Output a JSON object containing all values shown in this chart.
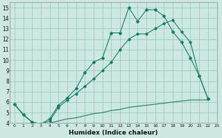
{
  "xlabel": "Humidex (Indice chaleur)",
  "bg_color": "#cce8e0",
  "grid_color": "#99ccbb",
  "line_color": "#1a7a6a",
  "xlim": [
    -0.5,
    23
  ],
  "ylim": [
    4,
    15.5
  ],
  "xticks": [
    0,
    1,
    2,
    3,
    4,
    5,
    6,
    7,
    8,
    9,
    10,
    11,
    12,
    13,
    14,
    15,
    16,
    17,
    18,
    19,
    20,
    21,
    22,
    23
  ],
  "yticks": [
    4,
    5,
    6,
    7,
    8,
    9,
    10,
    11,
    12,
    13,
    14,
    15
  ],
  "series1_x": [
    0,
    1,
    2,
    3,
    4,
    5,
    6,
    7,
    8,
    9,
    10,
    11,
    12,
    13,
    14,
    15,
    16,
    17,
    18,
    19,
    20,
    21,
    22
  ],
  "series1_y": [
    5.8,
    4.8,
    4.1,
    3.9,
    4.4,
    5.7,
    6.4,
    7.3,
    8.8,
    9.8,
    10.2,
    12.6,
    12.6,
    15.0,
    13.7,
    14.8,
    14.8,
    14.2,
    12.7,
    11.7,
    10.2,
    8.5,
    6.3
  ],
  "series2_x": [
    0,
    1,
    2,
    3,
    4,
    5,
    6,
    7,
    8,
    9,
    10,
    11,
    12,
    13,
    14,
    15,
    16,
    17,
    18,
    19,
    20,
    21,
    22
  ],
  "series2_y": [
    5.8,
    4.8,
    4.1,
    3.9,
    4.2,
    5.5,
    6.2,
    6.8,
    7.5,
    8.2,
    9.0,
    9.8,
    11.0,
    12.0,
    12.5,
    12.5,
    13.0,
    13.5,
    13.8,
    12.7,
    11.7,
    8.5,
    6.3
  ],
  "series3_x": [
    0,
    1,
    2,
    3,
    4,
    5,
    6,
    7,
    8,
    9,
    10,
    11,
    12,
    13,
    14,
    15,
    16,
    17,
    18,
    19,
    20,
    21,
    22
  ],
  "series3_y": [
    5.8,
    4.8,
    4.1,
    3.9,
    4.0,
    4.2,
    4.4,
    4.5,
    4.7,
    4.9,
    5.0,
    5.2,
    5.3,
    5.5,
    5.6,
    5.7,
    5.8,
    5.9,
    6.0,
    6.1,
    6.2,
    6.2,
    6.2
  ]
}
